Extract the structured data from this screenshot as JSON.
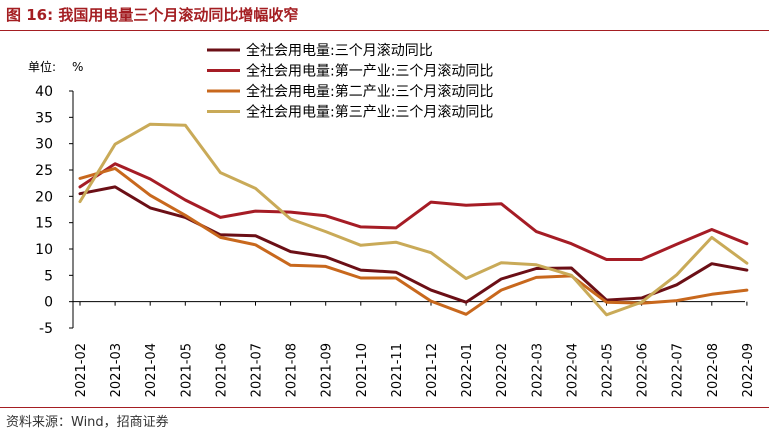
{
  "header": {
    "title": "图 16:  我国用电量三个月滚动同比增幅收窄"
  },
  "footer": {
    "source": "资料来源：Wind，招商证券"
  },
  "chart_data": {
    "type": "line",
    "title": "我国用电量三个月滚动同比增幅收窄",
    "unit_label": "单位:",
    "unit_value": "%",
    "ylim": [
      -5,
      40
    ],
    "yticks": [
      -5,
      0,
      5,
      10,
      15,
      20,
      25,
      30,
      35,
      40
    ],
    "grid": false,
    "legend_position": "top-center",
    "categories": [
      "2021-02",
      "2021-03",
      "2021-04",
      "2021-05",
      "2021-06",
      "2021-07",
      "2021-08",
      "2021-09",
      "2021-10",
      "2021-11",
      "2021-12",
      "2022-01",
      "2022-02",
      "2022-03",
      "2022-04",
      "2022-05",
      "2022-06",
      "2022-07",
      "2022-08",
      "2022-09"
    ],
    "series": [
      {
        "name": "全社会用电量:三个月滚动同比",
        "color": "#6b0f16",
        "values": [
          20.5,
          21.8,
          17.8,
          16.0,
          12.7,
          12.5,
          9.5,
          8.5,
          6.0,
          5.6,
          2.2,
          -0.1,
          4.3,
          6.3,
          6.4,
          0.3,
          0.7,
          3.2,
          7.2,
          6.0
        ]
      },
      {
        "name": "全社会用电量:第一产业:三个月滚动同比",
        "color": "#a51c25",
        "values": [
          21.8,
          26.2,
          23.3,
          19.3,
          16.0,
          17.2,
          17.0,
          16.3,
          14.2,
          14.0,
          18.9,
          18.3,
          18.6,
          13.3,
          11.0,
          8.0,
          8.0,
          10.9,
          13.7,
          11.0
        ]
      },
      {
        "name": "全社会用电量:第二产业:三个月滚动同比",
        "color": "#c8681d",
        "values": [
          23.4,
          25.3,
          20.2,
          16.4,
          12.2,
          10.8,
          6.9,
          6.7,
          4.5,
          4.5,
          0.1,
          -2.4,
          2.2,
          4.6,
          4.9,
          -0.1,
          -0.3,
          0.2,
          1.4,
          2.2
        ]
      },
      {
        "name": "全社会用电量:第三产业:三个月滚动同比",
        "color": "#c9aa58",
        "values": [
          19.0,
          29.9,
          33.7,
          33.5,
          24.5,
          21.5,
          15.7,
          13.3,
          10.7,
          11.3,
          9.3,
          4.4,
          7.4,
          7.0,
          5.0,
          -2.5,
          -0.1,
          5.1,
          12.2,
          7.3
        ]
      }
    ]
  }
}
